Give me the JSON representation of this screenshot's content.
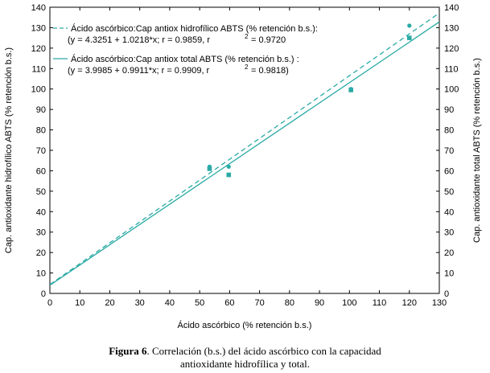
{
  "chart_data": {
    "type": "scatter",
    "xlabel": "Ácido ascórbico (% retención b.s.)",
    "ylabel_left": "Cap. antioxidante hidrofílico ABTS (% retención b.s.)",
    "ylabel_right": "Cap. antioxidante total ABTS (% retención b.s.)",
    "xlim": [
      0,
      130
    ],
    "ylim": [
      0,
      140
    ],
    "x_ticks": [
      0,
      10,
      20,
      30,
      40,
      50,
      60,
      70,
      80,
      90,
      100,
      110,
      120,
      130
    ],
    "y_ticks": [
      0,
      10,
      20,
      30,
      40,
      50,
      60,
      70,
      80,
      90,
      100,
      110,
      120,
      130,
      140
    ],
    "legend_placement": "top-left",
    "colors": {
      "series": "#2aaaa5",
      "axis": "#000000"
    },
    "series": [
      {
        "name": "Ácido ascórbico:Cap antiox hidrofílico ABTS (% retención b.s.):",
        "equation": "(y = 4.3251 + 1.0218*x;  r = 0.9859, r",
        "r2_tail": "= 0.9720",
        "intercept": 4.3251,
        "slope": 1.0218,
        "line_style": "dashed",
        "marker": "circle",
        "points": [
          {
            "x": 53.3,
            "y": 62.0
          },
          {
            "x": 59.7,
            "y": 62.0
          },
          {
            "x": 100.5,
            "y": 100.0
          },
          {
            "x": 120.0,
            "y": 131.0
          }
        ]
      },
      {
        "name": "Ácido ascórbico:Cap antiox total ABTS (% retención b.s.) :",
        "equation": "(y = 3.9985 + 0.9911*x;  r = 0.9909, r",
        "r2_tail": "= 0.9818)",
        "intercept": 3.9985,
        "slope": 0.9911,
        "line_style": "solid",
        "marker": "square",
        "points": [
          {
            "x": 53.3,
            "y": 61.0
          },
          {
            "x": 59.7,
            "y": 58.0
          },
          {
            "x": 100.5,
            "y": 99.5
          },
          {
            "x": 120.0,
            "y": 125.0
          }
        ]
      }
    ]
  },
  "caption": {
    "label": "Figura 6",
    "text_line1": ". Correlación (b.s.) del ácido ascórbico con la capacidad",
    "text_line2": "antioxidante hidrofílica y total."
  }
}
